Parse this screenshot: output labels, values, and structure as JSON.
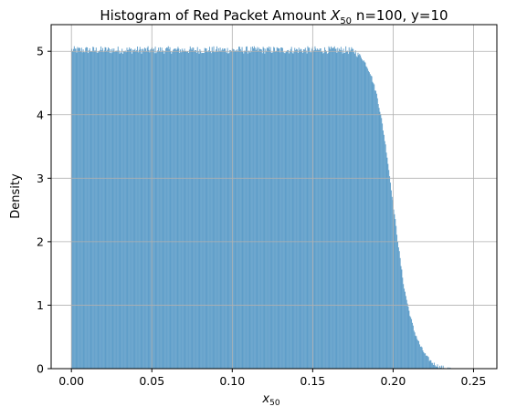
{
  "chart_data": {
    "type": "bar",
    "title": {
      "prefix": "Histogram of Red Packet Amount ",
      "var_main": "X",
      "var_sub": "50",
      "suffix": " n=100, y=10"
    },
    "xlabel": {
      "main": "x",
      "sub": "50"
    },
    "ylabel": "Density",
    "xlim": [
      -0.0126,
      0.2645
    ],
    "ylim": [
      0,
      5.42
    ],
    "x_ticks": [
      0.0,
      0.05,
      0.1,
      0.15,
      0.2,
      0.25
    ],
    "x_tick_labels": [
      "0.00",
      "0.05",
      "0.10",
      "0.15",
      "0.20",
      "0.25"
    ],
    "y_ticks": [
      0,
      1,
      2,
      3,
      4,
      5
    ],
    "y_tick_labels": [
      "0",
      "1",
      "2",
      "3",
      "4",
      "5"
    ],
    "grid": true,
    "bar_color": "#5f9ec9",
    "bin_range": [
      0.0,
      0.252
    ],
    "bin_count": 500,
    "density_profile": [
      [
        0.0,
        5.02
      ],
      [
        0.17,
        5.02
      ],
      [
        0.176,
        5.0
      ],
      [
        0.18,
        4.92
      ],
      [
        0.183,
        4.8
      ],
      [
        0.186,
        4.65
      ],
      [
        0.19,
        4.3
      ],
      [
        0.193,
        3.9
      ],
      [
        0.196,
        3.4
      ],
      [
        0.199,
        2.8
      ],
      [
        0.201,
        2.4
      ],
      [
        0.203,
        2.0
      ],
      [
        0.205,
        1.6
      ],
      [
        0.207,
        1.25
      ],
      [
        0.21,
        0.9
      ],
      [
        0.213,
        0.6
      ],
      [
        0.217,
        0.35
      ],
      [
        0.221,
        0.18
      ],
      [
        0.225,
        0.08
      ],
      [
        0.229,
        0.03
      ],
      [
        0.233,
        0.01
      ],
      [
        0.236,
        0.0
      ],
      [
        0.252,
        0.0
      ]
    ]
  }
}
